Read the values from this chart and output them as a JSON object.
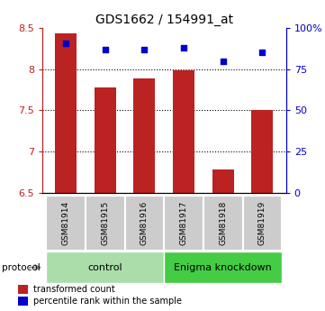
{
  "title": "GDS1662 / 154991_at",
  "samples": [
    "GSM81914",
    "GSM81915",
    "GSM81916",
    "GSM81917",
    "GSM81918",
    "GSM81919"
  ],
  "red_values": [
    8.43,
    7.78,
    7.89,
    7.99,
    6.78,
    7.5
  ],
  "blue_values": [
    91,
    87,
    87,
    88,
    80,
    85
  ],
  "ylim_left": [
    6.5,
    8.5
  ],
  "ylim_right": [
    0,
    100
  ],
  "yticks_left": [
    6.5,
    7.0,
    7.5,
    8.0,
    8.5
  ],
  "yticks_right": [
    0,
    25,
    50,
    75,
    100
  ],
  "ytick_labels_left": [
    "6.5",
    "7",
    "7.5",
    "8",
    "8.5"
  ],
  "ytick_labels_right": [
    "0",
    "25",
    "50",
    "75",
    "100%"
  ],
  "bar_color": "#bb2222",
  "dot_color": "#0000cc",
  "bar_width": 0.55,
  "control_color": "#aaddaa",
  "knockdown_color": "#44cc44",
  "label_bg_color": "#cccccc",
  "control_label": "control",
  "knockdown_label": "Enigma knockdown",
  "protocol_label": "protocol",
  "legend_red": "transformed count",
  "legend_blue": "percentile rank within the sample",
  "n_control": 3,
  "n_knockdown": 3,
  "grid_lines": [
    7.0,
    7.5,
    8.0
  ]
}
